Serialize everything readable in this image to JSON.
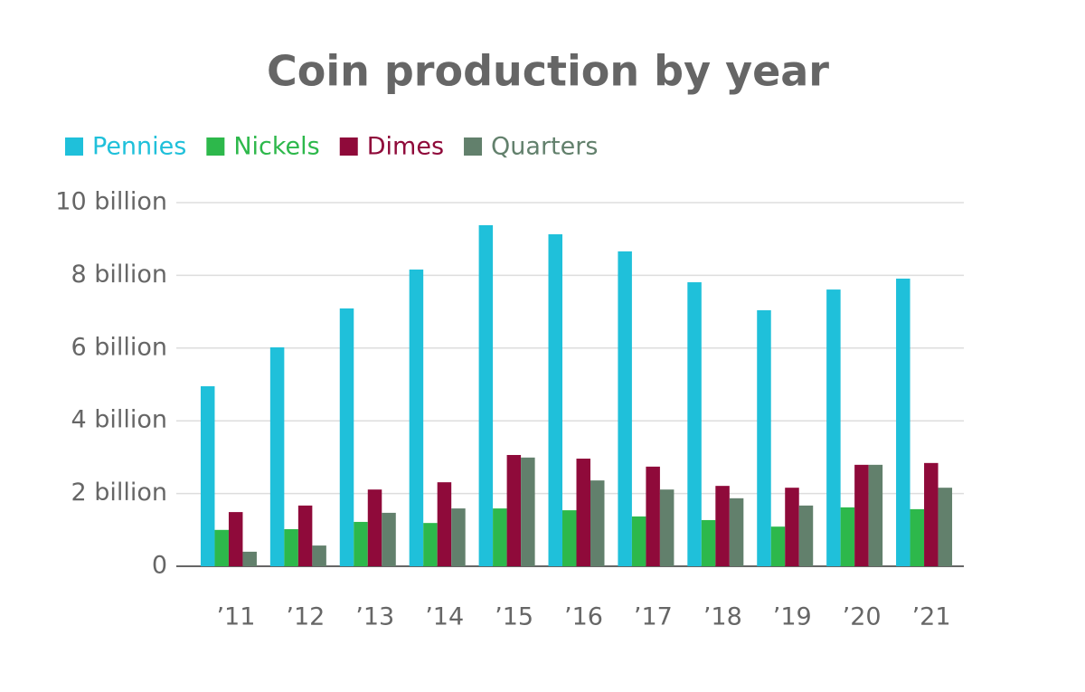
{
  "chart_data": {
    "type": "bar",
    "title": "Coin production by year",
    "categories": [
      "’11",
      "’12",
      "’13",
      "’14",
      "’15",
      "’16",
      "’17",
      "’18",
      "’19",
      "’20",
      "’21"
    ],
    "series": [
      {
        "name": "Pennies",
        "color": "#1fc0da",
        "values": [
          4950000000,
          6020000000,
          7090000000,
          8160000000,
          9380000000,
          9130000000,
          8660000000,
          7810000000,
          7040000000,
          7610000000,
          7910000000
        ]
      },
      {
        "name": "Nickels",
        "color": "#2db84b",
        "values": [
          1000000000,
          1020000000,
          1220000000,
          1190000000,
          1590000000,
          1540000000,
          1370000000,
          1270000000,
          1090000000,
          1620000000,
          1570000000
        ]
      },
      {
        "name": "Dimes",
        "color": "#8f0a3a",
        "values": [
          1490000000,
          1670000000,
          2110000000,
          2310000000,
          3060000000,
          2960000000,
          2740000000,
          2210000000,
          2160000000,
          2790000000,
          2840000000
        ]
      },
      {
        "name": "Quarters",
        "color": "#62806c",
        "values": [
          400000000,
          570000000,
          1470000000,
          1590000000,
          2990000000,
          2360000000,
          2110000000,
          1870000000,
          1670000000,
          2790000000,
          2160000000
        ]
      }
    ],
    "ylim": [
      0,
      10000000000
    ],
    "yticks": [
      0,
      {
        "value": 2000000000,
        "label": "2 billion"
      },
      {
        "value": 4000000000,
        "label": "4 billion"
      },
      {
        "value": 6000000000,
        "label": "6 billion"
      },
      {
        "value": 8000000000,
        "label": "8 billion"
      },
      {
        "value": 10000000000,
        "label": "10 billion"
      }
    ],
    "grid": true,
    "legend": "top-left"
  }
}
